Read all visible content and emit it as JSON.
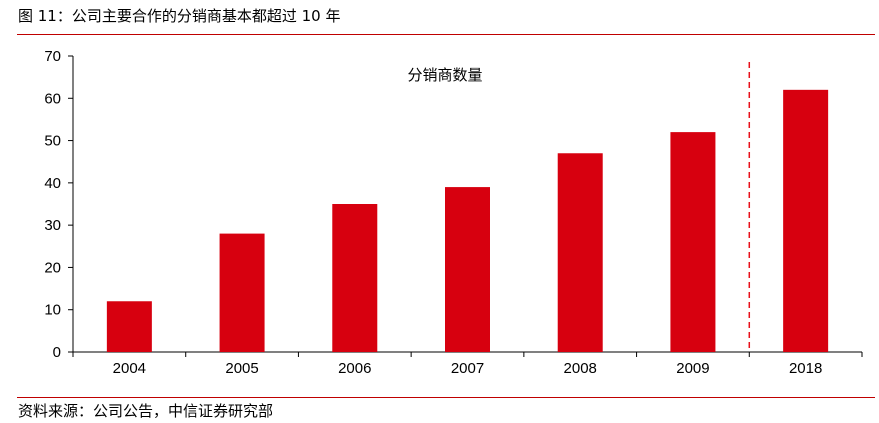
{
  "figure": {
    "title": "图 11：公司主要合作的分销商基本都超过 10 年",
    "source": "资料来源：公司公告，中信证券研究部"
  },
  "colors": {
    "bar": "#d7000f",
    "rule": "#c00000",
    "divider": "#e8101a"
  },
  "chart_data": {
    "type": "bar",
    "title": "分销商数量",
    "categories": [
      "2004",
      "2005",
      "2006",
      "2007",
      "2008",
      "2009",
      "2018"
    ],
    "values": [
      12,
      28,
      35,
      39,
      47,
      52,
      62
    ],
    "ylim": [
      0,
      70
    ],
    "yticks": [
      0,
      10,
      20,
      30,
      40,
      50,
      60,
      70
    ],
    "xlabel": "",
    "ylabel": "",
    "grid": false,
    "legend": "none",
    "annotations": [
      "dashed vertical divider between 2009 and 2018"
    ]
  }
}
